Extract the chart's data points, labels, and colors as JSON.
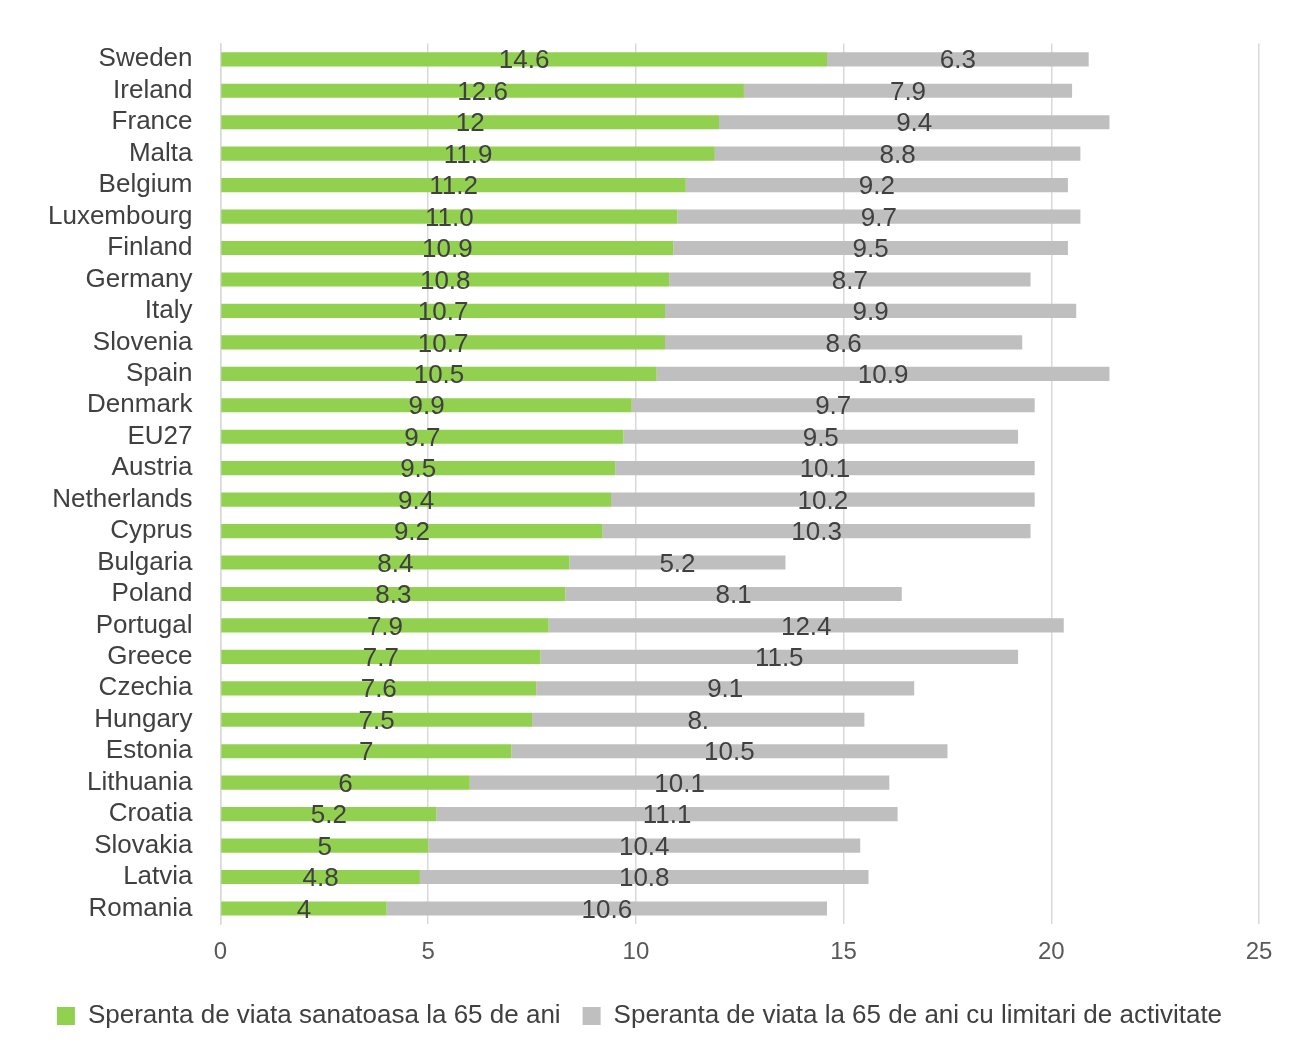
{
  "chart_data": {
    "type": "bar",
    "orientation": "horizontal",
    "stacked": true,
    "categories": [
      "Sweden",
      "Ireland",
      "France",
      "Malta",
      "Belgium",
      "Luxembourg",
      "Finland",
      "Germany",
      "Italy",
      "Slovenia",
      "Spain",
      "Denmark",
      "EU27",
      "Austria",
      "Netherlands",
      "Cyprus",
      "Bulgaria",
      "Poland",
      "Portugal",
      "Greece",
      "Czechia",
      "Hungary",
      "Estonia",
      "Lithuania",
      "Croatia",
      "Slovakia",
      "Latvia",
      "Romania"
    ],
    "series": [
      {
        "name": "Speranta de viata sanatoasa la 65 de ani",
        "color": "#92d050",
        "values": [
          14.6,
          12.6,
          12,
          11.9,
          11.2,
          11.0,
          10.9,
          10.8,
          10.7,
          10.7,
          10.5,
          9.9,
          9.7,
          9.5,
          9.4,
          9.2,
          8.4,
          8.3,
          7.9,
          7.7,
          7.6,
          7.5,
          7,
          6,
          5.2,
          5,
          4.8,
          4
        ],
        "value_labels": [
          "14.6",
          "12.6",
          "12",
          "11.9",
          "11.2",
          "11.0",
          "10.9",
          "10.8",
          "10.7",
          "10.7",
          "10.5",
          "9.9",
          "9.7",
          "9.5",
          "9.4",
          "9.2",
          "8.4",
          "8.3",
          "7.9",
          "7.7",
          "7.6",
          "7.5",
          "7",
          "6",
          "5.2",
          "5",
          "4.8",
          "4"
        ]
      },
      {
        "name": "Speranta de viata la 65 de ani cu limitari de activitate",
        "color": "#bfbfbf",
        "values": [
          6.3,
          7.9,
          9.4,
          8.8,
          9.2,
          9.7,
          9.5,
          8.7,
          9.9,
          8.6,
          10.9,
          9.7,
          9.5,
          10.1,
          10.2,
          10.3,
          5.2,
          8.1,
          12.4,
          11.5,
          9.1,
          8.0,
          10.5,
          10.1,
          11.1,
          10.4,
          10.8,
          10.6
        ],
        "value_labels": [
          "6.3",
          "7.9",
          "9.4",
          "8.8",
          "9.2",
          "9.7",
          "9.5",
          "8.7",
          "9.9",
          "8.6",
          "10.9",
          "9.7",
          "9.5",
          "10.1",
          "10.2",
          "10.3",
          "5.2",
          "8.1",
          "12.4",
          "11.5",
          "9.1",
          "8.",
          "10.5",
          "10.1",
          "11.1",
          "10.4",
          "10.8",
          "10.6"
        ]
      }
    ],
    "xlim": [
      0,
      25
    ],
    "xticks": [
      0,
      5,
      10,
      15,
      20,
      25
    ],
    "grid": "x",
    "legend": "bottom"
  }
}
